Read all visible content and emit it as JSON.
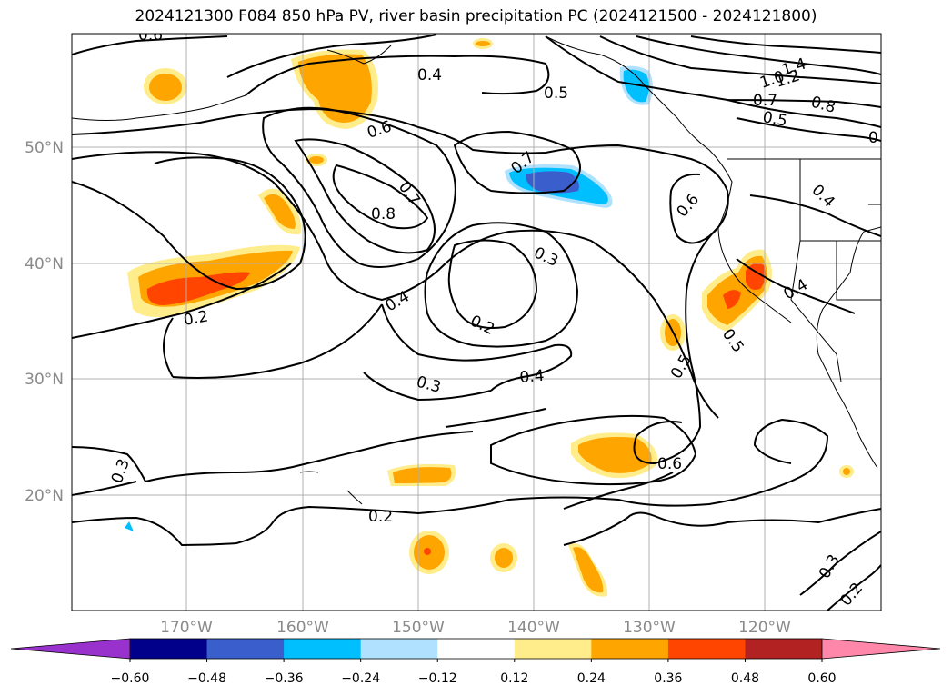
{
  "title": "2024121300 F084 850 hPa PV, river basin precipitation PC (2024121500 - 2024121800)",
  "map": {
    "lat_labels": [
      "50°N",
      "40°N",
      "30°N",
      "20°N"
    ],
    "lon_labels": [
      "170°W",
      "160°W",
      "150°W",
      "140°W",
      "130°W",
      "120°W"
    ],
    "contour_labels": [
      "0.6",
      "0.4",
      "0.5",
      "1.4",
      "1.2",
      "1.0",
      "0.7",
      "0.8",
      "0.5",
      "0",
      "0.6",
      "0.7",
      "0.8",
      "0.7",
      "0.6",
      "0.4",
      "0.3",
      "0.4",
      "0.2",
      "0.2",
      "0.4",
      "0.3",
      "0.5",
      "0.5",
      "0.4",
      "0.3",
      "0.6",
      "0.2",
      "0.3",
      "0.2"
    ]
  },
  "colorbar": {
    "ticks": [
      "−0.60",
      "−0.48",
      "−0.36",
      "−0.24",
      "−0.12",
      "0.12",
      "0.24",
      "0.36",
      "0.48",
      "0.60"
    ],
    "colors": [
      "#9932cc",
      "#00008b",
      "#3a5fcd",
      "#00bfff",
      "#b0e2ff",
      "#ffffff",
      "#ffec8b",
      "#ffa500",
      "#ff4500",
      "#b22222",
      "#ff88aa",
      "#ff88aa"
    ],
    "neg_extend_color": "#9932cc",
    "pos_extend_color": "#ff88aa"
  },
  "colors": {
    "contour": "#000000",
    "grid": "#b0b0b0",
    "coast": "#000000"
  }
}
